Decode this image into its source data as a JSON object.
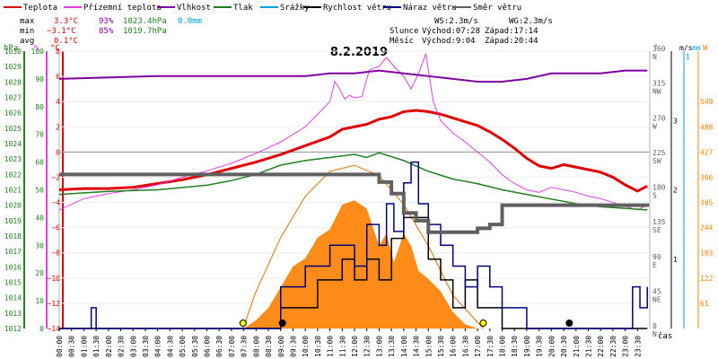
{
  "colors": {
    "temperature": "#e00000",
    "feels_like": "#e040e0",
    "humidity": "#8000a0",
    "pressure": "#208020",
    "precipitation": "#00a0e0",
    "wind_speed": "#000000",
    "wind_gust": "#000080",
    "wind_direction": "#606060",
    "solar": "#ff8000",
    "sun_curve": "#e07000",
    "precip_axis": "#00a0e0"
  },
  "legend": [
    {
      "label": "Teplota",
      "color": "#e00000"
    },
    {
      "label": "Přízemní teplota",
      "color": "#e040e0"
    },
    {
      "label": "Vlhkost",
      "color": "#8000a0"
    },
    {
      "label": "Tlak",
      "color": "#208020"
    },
    {
      "label": "Srážky",
      "color": "#00a0e0"
    },
    {
      "label": "Rychlost větru",
      "color": "#000000"
    },
    {
      "label": "Náraz větru",
      "color": "#000080"
    },
    {
      "label": "Směr větru",
      "color": "#606060"
    }
  ],
  "stats": {
    "rows": [
      {
        "label": "max",
        "temp": "3.3°C",
        "hum": "93%",
        "press": "1023.4hPa",
        "precip": "0.0mm"
      },
      {
        "label": "min",
        "temp": "−3.1°C",
        "hum": "85%",
        "press": "1019.7hPa",
        "precip": ""
      },
      {
        "label": "avg",
        "temp": "0.1°C",
        "hum": "",
        "press": "",
        "precip": ""
      }
    ],
    "ws": "WS:2.3m/s",
    "wg": "WG:2.3m/s",
    "sun_label": "Slunce",
    "moon_label": "Měsíc",
    "sunrise": "Východ:07:28",
    "sunset": "Západ:17:14",
    "moonrise": "Východ:9:04",
    "moonset": "Západ:20:44"
  },
  "chart_data": {
    "type": "line",
    "title": "8.2.2019",
    "xlabel": "čas",
    "x_categories": [
      "00:00",
      "00:30",
      "01:00",
      "01:30",
      "02:00",
      "02:30",
      "03:00",
      "03:30",
      "04:00",
      "04:30",
      "05:00",
      "05:30",
      "06:00",
      "06:30",
      "07:00",
      "07:30",
      "08:00",
      "08:30",
      "09:00",
      "09:30",
      "10:00",
      "10:30",
      "11:00",
      "11:30",
      "12:00",
      "12:30",
      "13:00",
      "13:30",
      "14:00",
      "14:30",
      "15:00",
      "15:30",
      "16:00",
      "16:30",
      "17:00",
      "17:30",
      "18:00",
      "18:30",
      "19:00",
      "19:30",
      "20:00",
      "20:30",
      "21:00",
      "21:30",
      "22:00",
      "22:30",
      "23:00",
      "23:30"
    ],
    "axes": {
      "pressure": {
        "unit": "hPa",
        "range": [
          1012,
          1030
        ],
        "ticks": [
          1012,
          1013,
          1014,
          1015,
          1016,
          1017,
          1018,
          1019,
          1020,
          1021,
          1022,
          1023,
          1024,
          1025,
          1026,
          1027,
          1028,
          1029,
          1030
        ]
      },
      "humidity": {
        "unit": "%",
        "range": [
          0,
          100
        ],
        "ticks": [
          0,
          10,
          20,
          30,
          40,
          50,
          60,
          70,
          80,
          90,
          100
        ]
      },
      "temperature": {
        "unit": "°C",
        "range": [
          -14,
          8
        ],
        "ticks": [
          -14,
          -12,
          -10,
          -8,
          -6,
          -4,
          -2,
          0,
          2,
          4,
          6,
          8
        ]
      },
      "wind_direction": {
        "unit": "°",
        "range": [
          0,
          360
        ],
        "ticks": [
          {
            "v": 0,
            "l": "0"
          },
          {
            "v": 45,
            "l": "45"
          },
          {
            "v": 90,
            "l": "90"
          },
          {
            "v": 135,
            "l": "135"
          },
          {
            "v": 180,
            "l": "180"
          },
          {
            "v": 225,
            "l": "225"
          },
          {
            "v": 270,
            "l": "270"
          },
          {
            "v": 315,
            "l": "315"
          },
          {
            "v": 360,
            "l": "360"
          }
        ],
        "compass": [
          {
            "v": 0,
            "l": "N"
          },
          {
            "v": 45,
            "l": "NE"
          },
          {
            "v": 90,
            "l": "E"
          },
          {
            "v": 135,
            "l": "SE"
          },
          {
            "v": 180,
            "l": "S"
          },
          {
            "v": 225,
            "l": "SW"
          },
          {
            "v": 270,
            "l": "W"
          },
          {
            "v": 315,
            "l": "NW"
          },
          {
            "v": 360,
            "l": "N"
          }
        ]
      },
      "wind_speed": {
        "unit": "m/s",
        "range": [
          0,
          4
        ],
        "ticks": [
          1,
          2,
          3
        ]
      },
      "precipitation": {
        "unit": "mm",
        "label_top": "1"
      },
      "solar": {
        "unit": "W",
        "range": [
          0,
          671
        ],
        "ticks": [
          61,
          122,
          183,
          244,
          305,
          366,
          427,
          488,
          549
        ]
      }
    },
    "series": [
      {
        "name": "Teplota",
        "axis": "temperature",
        "x": [
          0,
          1,
          2,
          3,
          4,
          5,
          6,
          7,
          8,
          9,
          10,
          11,
          11.5,
          12,
          12.5,
          13,
          13.5,
          14,
          14.5,
          15,
          15.5,
          16,
          16.5,
          17,
          17.5,
          18,
          18.5,
          19,
          19.5,
          20,
          20.5,
          21,
          21.5,
          22,
          22.5,
          23,
          23.5,
          23.9
        ],
        "y": [
          -3.0,
          -2.9,
          -2.9,
          -2.8,
          -2.5,
          -2.2,
          -1.8,
          -1.3,
          -0.8,
          -0.2,
          0.5,
          1.2,
          1.8,
          2.0,
          2.2,
          2.6,
          2.8,
          3.2,
          3.3,
          3.2,
          3.0,
          2.7,
          2.4,
          2.1,
          1.6,
          1.0,
          0.3,
          -0.5,
          -1.1,
          -1.3,
          -1.0,
          -1.2,
          -1.4,
          -1.6,
          -2.0,
          -2.6,
          -3.1,
          -2.7
        ]
      },
      {
        "name": "Přízemní teplota",
        "axis": "temperature",
        "x": [
          0,
          1,
          2,
          3,
          4,
          5,
          6,
          7,
          8,
          9,
          10,
          10.5,
          11,
          11.2,
          11.4,
          11.6,
          11.8,
          12,
          12.3,
          12.6,
          13,
          13.3,
          13.6,
          14,
          14.3,
          14.6,
          14.9,
          15.2,
          15.5,
          16,
          16.5,
          17,
          17.5,
          18,
          18.5,
          19,
          19.5,
          20,
          20.5,
          21,
          21.5,
          22,
          22.5,
          23,
          23.5,
          23.9
        ],
        "y": [
          -4.6,
          -3.7,
          -3.3,
          -3.0,
          -2.6,
          -2.0,
          -1.5,
          -0.9,
          -0.1,
          0.8,
          2.0,
          3.0,
          4.0,
          5.6,
          5.0,
          4.2,
          4.5,
          4.3,
          4.4,
          6.5,
          6.8,
          7.5,
          6.8,
          6.0,
          5.0,
          6.2,
          7.8,
          4.0,
          2.5,
          1.5,
          0.8,
          0.0,
          -0.8,
          -1.8,
          -2.5,
          -3.0,
          -3.2,
          -2.8,
          -3.0,
          -3.2,
          -3.5,
          -3.7,
          -4.0,
          -4.3,
          -4.6,
          -4.2
        ]
      },
      {
        "name": "Vlhkost",
        "axis": "humidity",
        "x": [
          0,
          4,
          6,
          10,
          11,
          12,
          13,
          14,
          15,
          16,
          17,
          18,
          19,
          20,
          21,
          22,
          23,
          23.9
        ],
        "y": [
          90,
          91,
          91,
          91,
          92,
          92,
          93,
          92,
          91,
          90,
          89,
          89,
          90,
          92,
          92,
          92,
          93,
          93
        ]
      },
      {
        "name": "Tlak",
        "axis": "pressure",
        "x": [
          0,
          2,
          4,
          6,
          7,
          8,
          9,
          10,
          11,
          12,
          12.5,
          13,
          14,
          15,
          16,
          17,
          18,
          19,
          20,
          21,
          22,
          23,
          23.9
        ],
        "y": [
          1020.7,
          1020.9,
          1021.0,
          1021.3,
          1021.6,
          1022.0,
          1022.6,
          1022.9,
          1023.1,
          1023.3,
          1023.1,
          1023.4,
          1022.9,
          1022.2,
          1021.7,
          1021.4,
          1021.0,
          1020.7,
          1020.4,
          1020.1,
          1019.9,
          1019.8,
          1019.7
        ]
      },
      {
        "name": "Rychlost větru",
        "axis": "wind_speed",
        "x": [
          0,
          8,
          9,
          10,
          10.5,
          11,
          11.5,
          12,
          12.5,
          13,
          13.5,
          14,
          14.5,
          15,
          15.5,
          16,
          16.5,
          17,
          17.5,
          18,
          21,
          23,
          23.9
        ],
        "y": [
          0,
          0,
          0.3,
          0.3,
          0.7,
          0.7,
          1.0,
          0.7,
          1.0,
          0.7,
          1.3,
          1.6,
          1.6,
          1.0,
          0.7,
          0.3,
          0.7,
          0.3,
          0.3,
          0,
          0,
          0,
          0
        ]
      },
      {
        "name": "Náraz větru",
        "axis": "wind_speed",
        "x": [
          0,
          1.2,
          1.3,
          1.5,
          8,
          9,
          9.5,
          10,
          10.5,
          11,
          11.5,
          12,
          12.5,
          13,
          13.3,
          13.6,
          14,
          14.3,
          14.6,
          15,
          15.5,
          16,
          16.5,
          17,
          17.5,
          18,
          18.5,
          19,
          21,
          23,
          23.3,
          23.6,
          23.9
        ],
        "y": [
          0,
          0,
          0.3,
          0,
          0,
          0.6,
          0.6,
          0.9,
          0.9,
          1.2,
          1.2,
          0.9,
          1.5,
          1.2,
          1.8,
          1.4,
          2.1,
          2.4,
          1.8,
          1.5,
          1.2,
          0.9,
          0.6,
          0.9,
          0.6,
          0.3,
          0.3,
          0,
          0,
          0,
          0.6,
          0.3,
          0.6
        ]
      },
      {
        "name": "Směr větru",
        "axis": "wind_direction",
        "x": [
          0,
          2,
          4,
          6,
          8,
          10,
          11,
          12,
          13,
          13.5,
          14,
          14.5,
          15,
          15.5,
          16,
          16.5,
          17,
          17.5,
          18,
          20,
          22,
          23.9
        ],
        "y": [
          200,
          200,
          200,
          200,
          200,
          200,
          200,
          200,
          190,
          175,
          150,
          140,
          125,
          125,
          125,
          125,
          130,
          135,
          160,
          160,
          160,
          158
        ]
      }
    ],
    "solar_radiation": {
      "axis": "solar",
      "x": [
        7.5,
        8,
        8.5,
        9,
        9.5,
        10,
        10.5,
        11,
        11.5,
        12,
        12.5,
        13,
        13.3,
        13.6,
        14,
        14.3,
        14.6,
        15,
        15.5,
        16,
        16.5,
        17
      ],
      "y": [
        0,
        20,
        50,
        100,
        150,
        170,
        220,
        240,
        300,
        310,
        290,
        200,
        230,
        160,
        230,
        200,
        140,
        120,
        90,
        40,
        10,
        0
      ]
    },
    "sun_curve": {
      "axis": "solar",
      "x": [
        7.47,
        8,
        9,
        10,
        11,
        12,
        13,
        14,
        15,
        16,
        17.23
      ],
      "y": [
        0,
        90,
        220,
        320,
        380,
        395,
        370,
        300,
        200,
        80,
        0
      ]
    },
    "markers": [
      {
        "kind": "sunrise",
        "x": 7.47
      },
      {
        "kind": "sunset",
        "x": 17.23
      },
      {
        "kind": "moonrise",
        "x": 9.07
      },
      {
        "kind": "moonset",
        "x": 20.73
      }
    ]
  }
}
